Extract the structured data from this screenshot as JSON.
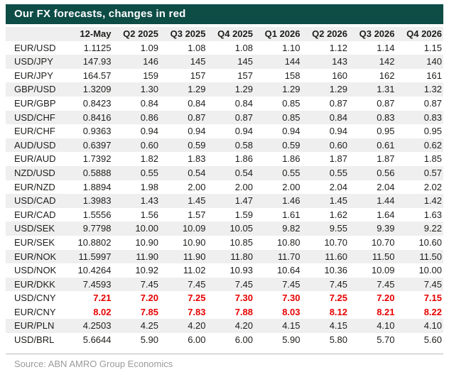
{
  "title": "Our FX forecasts, changes in red",
  "footer": {
    "source": "Source: ABN AMRO Group Economics"
  },
  "colors": {
    "header_bg": "#0e4c46",
    "changed": "#e60000",
    "stripe": "#efefef",
    "text": "#1d1d1b",
    "source_text": "#9b9b9b",
    "rule": "#bcbcbc"
  },
  "chart_data": {
    "type": "table",
    "title": "Our FX forecasts, changes in red",
    "highlight_note": "changes shown in red",
    "columns": [
      "",
      "12-May",
      "Q2 2025",
      "Q3 2025",
      "Q4 2025",
      "Q1 2026",
      "Q2 2026",
      "Q3 2026",
      "Q4 2026"
    ],
    "rows": [
      {
        "pair": "EUR/USD",
        "values": [
          "1.1125",
          "1.09",
          "1.08",
          "1.08",
          "1.10",
          "1.12",
          "1.14",
          "1.15"
        ],
        "changed": false,
        "shaded": false
      },
      {
        "pair": "USD/JPY",
        "values": [
          "147.93",
          "146",
          "145",
          "145",
          "144",
          "143",
          "142",
          "140"
        ],
        "changed": false,
        "shaded": true
      },
      {
        "pair": "EUR/JPY",
        "values": [
          "164.57",
          "159",
          "157",
          "157",
          "158",
          "160",
          "162",
          "161"
        ],
        "changed": false,
        "shaded": false
      },
      {
        "pair": "GBP/USD",
        "values": [
          "1.3209",
          "1.30",
          "1.29",
          "1.29",
          "1.29",
          "1.29",
          "1.31",
          "1.32"
        ],
        "changed": false,
        "shaded": true
      },
      {
        "pair": "EUR/GBP",
        "values": [
          "0.8423",
          "0.84",
          "0.84",
          "0.84",
          "0.85",
          "0.87",
          "0.87",
          "0.87"
        ],
        "changed": false,
        "shaded": false
      },
      {
        "pair": "USD/CHF",
        "values": [
          "0.8416",
          "0.86",
          "0.87",
          "0.87",
          "0.85",
          "0.84",
          "0.83",
          "0.83"
        ],
        "changed": false,
        "shaded": true
      },
      {
        "pair": "EUR/CHF",
        "values": [
          "0.9363",
          "0.94",
          "0.94",
          "0.94",
          "0.94",
          "0.94",
          "0.95",
          "0.95"
        ],
        "changed": false,
        "shaded": false
      },
      {
        "pair": "AUD/USD",
        "values": [
          "0.6397",
          "0.60",
          "0.59",
          "0.58",
          "0.59",
          "0.60",
          "0.61",
          "0.62"
        ],
        "changed": false,
        "shaded": true
      },
      {
        "pair": "EUR/AUD",
        "values": [
          "1.7392",
          "1.82",
          "1.83",
          "1.86",
          "1.86",
          "1.87",
          "1.87",
          "1.85"
        ],
        "changed": false,
        "shaded": false
      },
      {
        "pair": "NZD/USD",
        "values": [
          "0.5888",
          "0.55",
          "0.54",
          "0.54",
          "0.55",
          "0.55",
          "0.56",
          "0.57"
        ],
        "changed": false,
        "shaded": true
      },
      {
        "pair": "EUR/NZD",
        "values": [
          "1.8894",
          "1.98",
          "2.00",
          "2.00",
          "2.00",
          "2.04",
          "2.04",
          "2.02"
        ],
        "changed": false,
        "shaded": false
      },
      {
        "pair": "USD/CAD",
        "values": [
          "1.3983",
          "1.43",
          "1.45",
          "1.47",
          "1.46",
          "1.45",
          "1.44",
          "1.42"
        ],
        "changed": false,
        "shaded": true
      },
      {
        "pair": "EUR/CAD",
        "values": [
          "1.5556",
          "1.56",
          "1.57",
          "1.59",
          "1.61",
          "1.62",
          "1.64",
          "1.63"
        ],
        "changed": false,
        "shaded": false
      },
      {
        "pair": "USD/SEK",
        "values": [
          "9.7798",
          "10.00",
          "10.09",
          "10.05",
          "9.82",
          "9.55",
          "9.39",
          "9.22"
        ],
        "changed": false,
        "shaded": true
      },
      {
        "pair": "EUR/SEK",
        "values": [
          "10.8802",
          "10.90",
          "10.90",
          "10.85",
          "10.80",
          "10.70",
          "10.70",
          "10.60"
        ],
        "changed": false,
        "shaded": false
      },
      {
        "pair": "EUR/NOK",
        "values": [
          "11.5997",
          "11.90",
          "11.90",
          "11.80",
          "11.70",
          "11.60",
          "11.50",
          "11.50"
        ],
        "changed": false,
        "shaded": true
      },
      {
        "pair": "USD/NOK",
        "values": [
          "10.4264",
          "10.92",
          "11.02",
          "10.93",
          "10.64",
          "10.36",
          "10.09",
          "10.00"
        ],
        "changed": false,
        "shaded": false
      },
      {
        "pair": "EUR/DKK",
        "values": [
          "7.4593",
          "7.45",
          "7.45",
          "7.45",
          "7.45",
          "7.45",
          "7.45",
          "7.45"
        ],
        "changed": false,
        "shaded": true
      },
      {
        "pair": "USD/CNY",
        "values": [
          "7.21",
          "7.20",
          "7.25",
          "7.30",
          "7.30",
          "7.25",
          "7.20",
          "7.15"
        ],
        "changed": true,
        "shaded": false
      },
      {
        "pair": "EUR/CNY",
        "values": [
          "8.02",
          "7.85",
          "7.83",
          "7.88",
          "8.03",
          "8.12",
          "8.21",
          "8.22"
        ],
        "changed": true,
        "shaded": false
      },
      {
        "pair": "EUR/PLN",
        "values": [
          "4.2503",
          "4.25",
          "4.20",
          "4.20",
          "4.15",
          "4.15",
          "4.10",
          "4.10"
        ],
        "changed": false,
        "shaded": true
      },
      {
        "pair": "USD/BRL",
        "values": [
          "5.6644",
          "5.90",
          "6.00",
          "6.00",
          "5.90",
          "5.80",
          "5.70",
          "5.60"
        ],
        "changed": false,
        "shaded": false
      }
    ],
    "source": "Source: ABN AMRO Group Economics"
  }
}
